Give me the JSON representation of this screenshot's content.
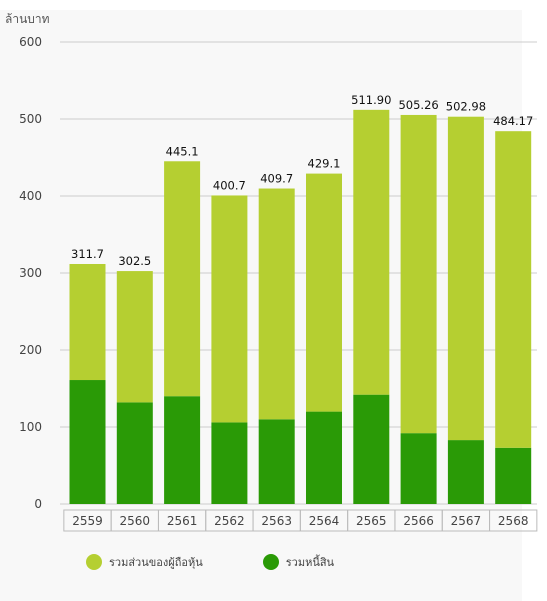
{
  "chart_data": {
    "type": "bar",
    "stacked": true,
    "title": "",
    "ylabel": "ล้านบาท",
    "xlabel": "",
    "ylim": [
      0,
      600
    ],
    "yticks": [
      0,
      100,
      200,
      300,
      400,
      500,
      600
    ],
    "grid": true,
    "legend_position": "bottom",
    "categories": [
      "2559",
      "2560",
      "2561",
      "2562",
      "2563",
      "2564",
      "2565",
      "2566",
      "2567",
      "2568"
    ],
    "totals": [
      "311.7",
      "302.5",
      "445.1",
      "400.7",
      "409.7",
      "429.1",
      "511.90",
      "505.26",
      "502.98",
      "484.17"
    ],
    "series": [
      {
        "name": "รวมหนี้สิน",
        "color": "#2a9a06",
        "values": [
          161,
          132,
          140,
          106,
          110,
          120,
          142,
          92,
          83,
          73
        ]
      },
      {
        "name": "รวมส่วนของผู้ถือหุ้น",
        "color": "#b5cf31",
        "values": [
          150.7,
          170.5,
          305.1,
          294.7,
          299.7,
          309.1,
          369.9,
          413.26,
          419.98,
          411.17
        ]
      }
    ],
    "legend_order": [
      "รวมส่วนของผู้ถือหุ้น",
      "รวมหนี้สิน"
    ]
  }
}
